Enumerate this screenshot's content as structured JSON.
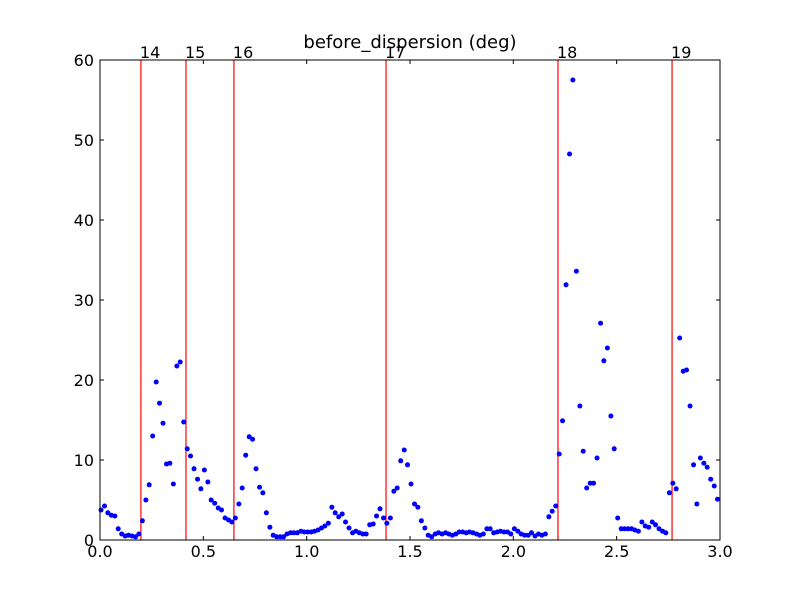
{
  "chart_data": {
    "type": "scatter",
    "title": "before_dispersion (deg)",
    "color": "#0000ff",
    "line_color": "#ff0000",
    "xlim": [
      0,
      3
    ],
    "ylim": [
      0,
      60
    ],
    "xticks": [
      {
        "value": 0,
        "label": "0.0"
      },
      0.5,
      {
        "value": 1,
        "label": "1.0"
      },
      1.5,
      {
        "value": 2,
        "label": "2.0"
      },
      2.5,
      {
        "value": 3,
        "label": "3.0"
      }
    ],
    "yticks": [
      0,
      10,
      20,
      30,
      40,
      50,
      60
    ],
    "vlines": [
      {
        "x": 0.198,
        "label": "14"
      },
      {
        "x": 0.416,
        "label": "15"
      },
      {
        "x": 0.648,
        "label": "16"
      },
      {
        "x": 1.384,
        "label": "17"
      },
      {
        "x": 2.216,
        "label": "18"
      },
      {
        "x": 2.768,
        "label": "19"
      }
    ],
    "x": [
      0.005,
      0.022,
      0.038,
      0.055,
      0.072,
      0.088,
      0.105,
      0.122,
      0.138,
      0.155,
      0.172,
      0.188,
      0.205,
      0.222,
      0.238,
      0.255,
      0.272,
      0.288,
      0.305,
      0.322,
      0.338,
      0.355,
      0.372,
      0.388,
      0.405,
      0.422,
      0.438,
      0.455,
      0.472,
      0.488,
      0.505,
      0.522,
      0.538,
      0.555,
      0.572,
      0.588,
      0.605,
      0.622,
      0.638,
      0.655,
      0.672,
      0.688,
      0.705,
      0.722,
      0.738,
      0.755,
      0.772,
      0.788,
      0.805,
      0.822,
      0.838,
      0.855,
      0.872,
      0.888,
      0.905,
      0.922,
      0.938,
      0.955,
      0.972,
      0.988,
      1.005,
      1.022,
      1.038,
      1.055,
      1.072,
      1.088,
      1.105,
      1.122,
      1.138,
      1.155,
      1.172,
      1.188,
      1.205,
      1.222,
      1.238,
      1.255,
      1.272,
      1.288,
      1.305,
      1.322,
      1.338,
      1.355,
      1.372,
      1.388,
      1.405,
      1.422,
      1.438,
      1.455,
      1.472,
      1.488,
      1.505,
      1.522,
      1.538,
      1.555,
      1.572,
      1.588,
      1.605,
      1.622,
      1.638,
      1.655,
      1.672,
      1.688,
      1.705,
      1.722,
      1.738,
      1.755,
      1.772,
      1.788,
      1.805,
      1.822,
      1.838,
      1.855,
      1.872,
      1.888,
      1.905,
      1.922,
      1.938,
      1.955,
      1.972,
      1.988,
      2.005,
      2.022,
      2.038,
      2.055,
      2.072,
      2.088,
      2.105,
      2.122,
      2.138,
      2.155,
      2.172,
      2.188,
      2.205,
      2.222,
      2.238,
      2.255,
      2.272,
      2.288,
      2.305,
      2.322,
      2.338,
      2.355,
      2.372,
      2.388,
      2.405,
      2.422,
      2.438,
      2.455,
      2.472,
      2.488,
      2.505,
      2.522,
      2.538,
      2.555,
      2.572,
      2.588,
      2.605,
      2.622,
      2.638,
      2.655,
      2.672,
      2.688,
      2.705,
      2.722,
      2.738,
      2.755,
      2.772,
      2.788,
      2.805,
      2.822,
      2.838,
      2.855,
      2.872,
      2.888,
      2.905,
      2.922,
      2.938,
      2.955,
      2.972,
      2.988
    ],
    "values": [
      3.75,
      4.25,
      3.4,
      3.1,
      3.0,
      1.4,
      0.75,
      0.5,
      0.6,
      0.5,
      0.4,
      0.75,
      2.4,
      5.0,
      6.9,
      13.0,
      19.75,
      17.1,
      14.6,
      9.5,
      9.6,
      7.0,
      21.75,
      22.25,
      14.75,
      11.4,
      10.5,
      8.9,
      7.6,
      6.4,
      8.75,
      7.25,
      5.0,
      4.6,
      4.0,
      3.75,
      2.75,
      2.5,
      2.25,
      2.75,
      4.5,
      6.5,
      10.6,
      12.9,
      12.6,
      8.9,
      6.6,
      5.9,
      3.4,
      1.6,
      0.6,
      0.4,
      0.4,
      0.4,
      0.75,
      0.9,
      0.9,
      0.9,
      1.1,
      1.0,
      1.0,
      1.0,
      1.1,
      1.25,
      1.5,
      1.75,
      2.1,
      4.1,
      3.4,
      2.9,
      3.25,
      2.25,
      1.5,
      0.9,
      1.1,
      0.9,
      0.75,
      0.75,
      1.9,
      2.0,
      3.0,
      3.9,
      2.75,
      2.1,
      2.75,
      6.1,
      6.5,
      9.9,
      11.25,
      9.4,
      7.0,
      4.5,
      4.1,
      2.4,
      1.5,
      0.6,
      0.4,
      0.75,
      0.9,
      0.75,
      0.9,
      0.75,
      0.6,
      0.75,
      1.0,
      1.0,
      0.9,
      1.0,
      0.9,
      0.75,
      0.6,
      0.75,
      1.4,
      1.4,
      0.9,
      1.0,
      1.1,
      1.0,
      1.0,
      0.75,
      1.4,
      1.1,
      0.75,
      0.6,
      0.6,
      0.9,
      0.5,
      0.75,
      0.6,
      0.75,
      2.9,
      3.6,
      4.25,
      10.75,
      14.9,
      31.9,
      48.25,
      57.5,
      33.6,
      16.75,
      11.1,
      6.5,
      7.1,
      7.1,
      10.25,
      27.1,
      22.4,
      24.0,
      15.5,
      11.4,
      2.75,
      1.4,
      1.4,
      1.4,
      1.4,
      1.25,
      1.1,
      2.25,
      1.75,
      1.6,
      2.25,
      1.9,
      1.4,
      1.1,
      0.9,
      5.9,
      7.1,
      6.4,
      25.25,
      21.1,
      21.25,
      16.75,
      9.4,
      4.5,
      10.25,
      9.6,
      9.1,
      7.6,
      6.75,
      5.1
    ]
  }
}
